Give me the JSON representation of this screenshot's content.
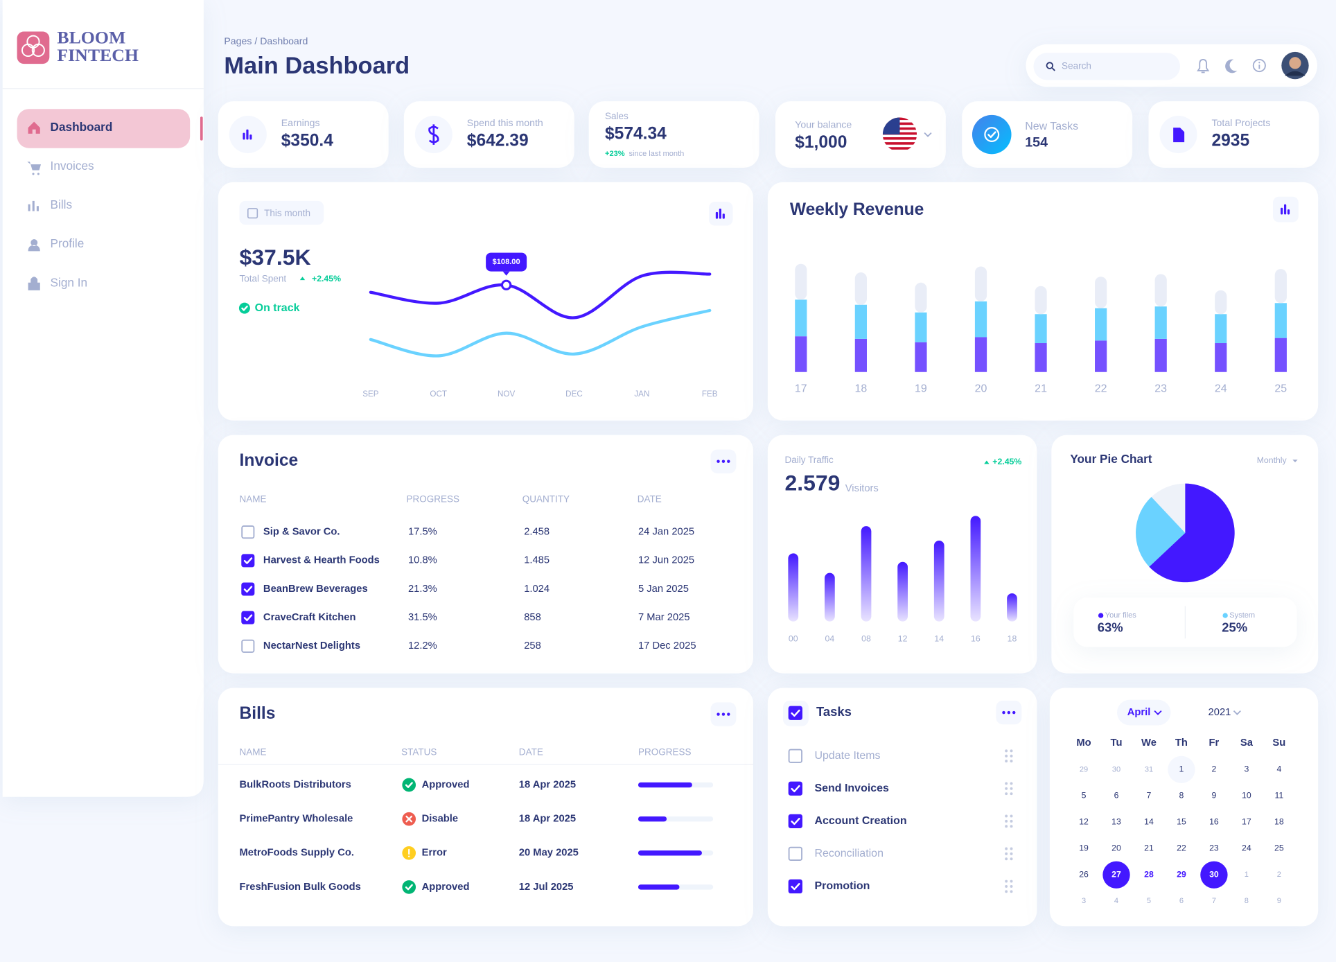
{
  "brand": {
    "line1": "BLOOM",
    "line2": "FINTECH"
  },
  "nav": [
    {
      "label": "Dashboard",
      "active": true
    },
    {
      "label": "Invoices"
    },
    {
      "label": "Bills"
    },
    {
      "label": "Profile"
    },
    {
      "label": "Sign In"
    }
  ],
  "header": {
    "breadcrumb": "Pages / Dashboard",
    "title": "Main Dashboard",
    "search_placeholder": "Search"
  },
  "stats": [
    {
      "label": "Earnings",
      "value": "$350.4"
    },
    {
      "label": "Spend this month",
      "value": "$642.39"
    },
    {
      "label": "Sales",
      "value": "$574.34",
      "change": "+23%",
      "change_note": "since last month"
    },
    {
      "label": "Your balance",
      "value": "$1,000"
    },
    {
      "label": "New Tasks",
      "value": "154"
    },
    {
      "label": "Total Projects",
      "value": "2935"
    }
  ],
  "spending": {
    "period": "This month",
    "total": "$37.5K",
    "total_label": "Total Spent",
    "change": "+2.45%",
    "status": "On track",
    "chart": {
      "type": "line",
      "x": [
        "SEP",
        "OCT",
        "NOV",
        "DEC",
        "JAN",
        "FEB"
      ],
      "ylim": [
        0,
        150
      ],
      "series": [
        {
          "color": "#4318ff",
          "values": [
            100,
            88,
            108,
            72,
            118,
            120
          ],
          "value_labels": [
            null,
            null,
            "$108.00",
            null,
            null,
            null
          ]
        },
        {
          "color": "#6ad2ff",
          "values": [
            48,
            30,
            55,
            32,
            62,
            80
          ]
        }
      ]
    }
  },
  "weekly_revenue": {
    "type": "bar",
    "stacked": true,
    "title": "Weekly Revenue",
    "categories": [
      "17",
      "18",
      "19",
      "20",
      "21",
      "22",
      "23",
      "24",
      "25"
    ],
    "ylim": [
      0,
      130
    ],
    "series": [
      {
        "color": "#7551ff",
        "values": [
          42,
          39,
          35,
          41,
          34,
          37,
          39,
          34,
          40
        ]
      },
      {
        "color": "#6ad2ff",
        "values": [
          43,
          40,
          35,
          42,
          34,
          38,
          38,
          34,
          41
        ]
      },
      {
        "color": "#e9edf7",
        "values": [
          42,
          38,
          35,
          41,
          33,
          37,
          38,
          28,
          40
        ]
      }
    ]
  },
  "invoice": {
    "title": "Invoice",
    "columns": [
      "NAME",
      "PROGRESS",
      "QUANTITY",
      "DATE"
    ],
    "rows": [
      {
        "checked": false,
        "cells": [
          "Sip & Savor Co.",
          "17.5%",
          "2.458",
          "24 Jan 2025"
        ]
      },
      {
        "checked": true,
        "cells": [
          "Harvest & Hearth Foods",
          "10.8%",
          "1.485",
          "12 Jun 2025"
        ]
      },
      {
        "checked": true,
        "cells": [
          "BeanBrew Beverages",
          "21.3%",
          "1.024",
          "5 Jan 2025"
        ]
      },
      {
        "checked": true,
        "cells": [
          "CraveCraft Kitchen",
          "31.5%",
          "858",
          "7 Mar 2025"
        ]
      },
      {
        "checked": false,
        "cells": [
          "NectarNest Delights",
          "12.2%",
          "258",
          "17 Dec 2025"
        ]
      }
    ]
  },
  "daily_traffic": {
    "type": "bar",
    "title": "Daily Traffic",
    "value": "2.579",
    "unit": "Visitors",
    "change": "+2.45%",
    "categories": [
      "00",
      "04",
      "08",
      "12",
      "14",
      "16",
      "18"
    ],
    "values": [
      80,
      57,
      112,
      70,
      95,
      124,
      33
    ],
    "ylim": [
      0,
      130
    ],
    "color": "#4318ff"
  },
  "pie": {
    "type": "pie",
    "title": "Your Pie Chart",
    "period": "Monthly",
    "categories": [
      "Your files",
      "System"
    ],
    "values": [
      63,
      25
    ],
    "value_labels": [
      "63%",
      "25%"
    ],
    "colors": [
      "#4318ff",
      "#6ad2ff"
    ]
  },
  "bills": {
    "title": "Bills",
    "columns": [
      "NAME",
      "STATUS",
      "DATE",
      "PROGRESS"
    ],
    "progress_lim": [
      0,
      100
    ],
    "rows": [
      {
        "name": "BulkRoots Distributors",
        "status": "Approved",
        "status_icon": "check",
        "status_color": "#01b574",
        "date": "18 Apr 2025",
        "progress": 72
      },
      {
        "name": "PrimePantry Wholesale",
        "status": "Disable",
        "status_icon": "cross",
        "status_color": "#ee5d50",
        "date": "18 Apr 2025",
        "progress": 38
      },
      {
        "name": "MetroFoods Supply Co.",
        "status": "Error",
        "status_icon": "alert",
        "status_color": "#ffce20",
        "date": "20 May 2025",
        "progress": 85
      },
      {
        "name": "FreshFusion Bulk Goods",
        "status": "Approved",
        "status_icon": "check",
        "status_color": "#01b574",
        "date": "12 Jul 2025",
        "progress": 55
      }
    ]
  },
  "tasks": {
    "title": "Tasks",
    "items": [
      {
        "label": "Update Items",
        "done": false
      },
      {
        "label": "Send Invoices",
        "done": true
      },
      {
        "label": "Account Creation",
        "done": true
      },
      {
        "label": "Reconciliation",
        "done": false
      },
      {
        "label": "Promotion",
        "done": true
      }
    ]
  },
  "calendar": {
    "month": "April",
    "year": "2021",
    "weekdays": [
      "Mo",
      "Tu",
      "We",
      "Th",
      "Fr",
      "Sa",
      "Su"
    ],
    "weeks": [
      [
        {
          "day": 29,
          "state": "muted"
        },
        {
          "day": 30,
          "state": "muted"
        },
        {
          "day": 31,
          "state": "muted"
        },
        {
          "day": 1,
          "state": "today"
        },
        {
          "day": 2
        },
        {
          "day": 3
        },
        {
          "day": 4
        }
      ],
      [
        {
          "day": 5
        },
        {
          "day": 6
        },
        {
          "day": 7
        },
        {
          "day": 8
        },
        {
          "day": 9
        },
        {
          "day": 10
        },
        {
          "day": 11
        }
      ],
      [
        {
          "day": 12
        },
        {
          "day": 13
        },
        {
          "day": 14
        },
        {
          "day": 15
        },
        {
          "day": 16
        },
        {
          "day": 17
        },
        {
          "day": 18
        }
      ],
      [
        {
          "day": 19
        },
        {
          "day": 20
        },
        {
          "day": 21
        },
        {
          "day": 22
        },
        {
          "day": 23
        },
        {
          "day": 24
        },
        {
          "day": 25
        }
      ],
      [
        {
          "day": 26
        },
        {
          "day": 27,
          "state": "selected"
        },
        {
          "day": 28,
          "state": "range"
        },
        {
          "day": 29,
          "state": "range"
        },
        {
          "day": 30,
          "state": "selected"
        },
        {
          "day": 1,
          "state": "muted"
        },
        {
          "day": 2,
          "state": "muted"
        }
      ],
      [
        {
          "day": 3,
          "state": "muted"
        },
        {
          "day": 4,
          "state": "muted"
        },
        {
          "day": 5,
          "state": "muted"
        },
        {
          "day": 6,
          "state": "muted"
        },
        {
          "day": 7,
          "state": "muted"
        },
        {
          "day": 8,
          "state": "muted"
        },
        {
          "day": 9,
          "state": "muted"
        }
      ]
    ]
  }
}
